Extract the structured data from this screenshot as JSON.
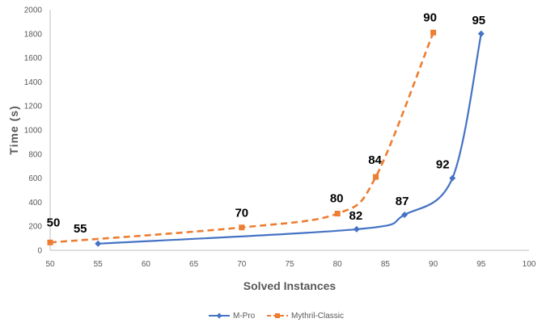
{
  "chart_data": {
    "type": "line",
    "title": "",
    "xlabel": "Solved Instances",
    "ylabel": "Time (s)",
    "xlim": [
      50,
      100
    ],
    "ylim": [
      0,
      2000
    ],
    "x_ticks": [
      50,
      55,
      60,
      65,
      70,
      75,
      80,
      85,
      90,
      95,
      100
    ],
    "y_ticks": [
      0,
      200,
      400,
      600,
      800,
      1000,
      1200,
      1400,
      1600,
      1800,
      2000
    ],
    "grid": false,
    "legend_position": "bottom",
    "series": [
      {
        "name": "M-Pro",
        "color": "#4472C4",
        "line_style": "solid",
        "marker": "diamond",
        "points": [
          {
            "x": 55,
            "y": 55,
            "label": "55"
          },
          {
            "x": 82,
            "y": 175,
            "label": "82"
          },
          {
            "x": 87,
            "y": 295,
            "label": "87"
          },
          {
            "x": 92,
            "y": 600,
            "label": "92"
          },
          {
            "x": 95,
            "y": 1800,
            "label": "95"
          }
        ]
      },
      {
        "name": "Mythril-Classic",
        "color": "#ED7D31",
        "line_style": "dashed",
        "marker": "square",
        "points": [
          {
            "x": 50,
            "y": 65,
            "label": "50"
          },
          {
            "x": 70,
            "y": 190,
            "label": "70"
          },
          {
            "x": 80,
            "y": 305,
            "label": "80"
          },
          {
            "x": 84,
            "y": 610,
            "label": "84"
          },
          {
            "x": 90,
            "y": 1810,
            "label": "90"
          }
        ]
      }
    ]
  }
}
